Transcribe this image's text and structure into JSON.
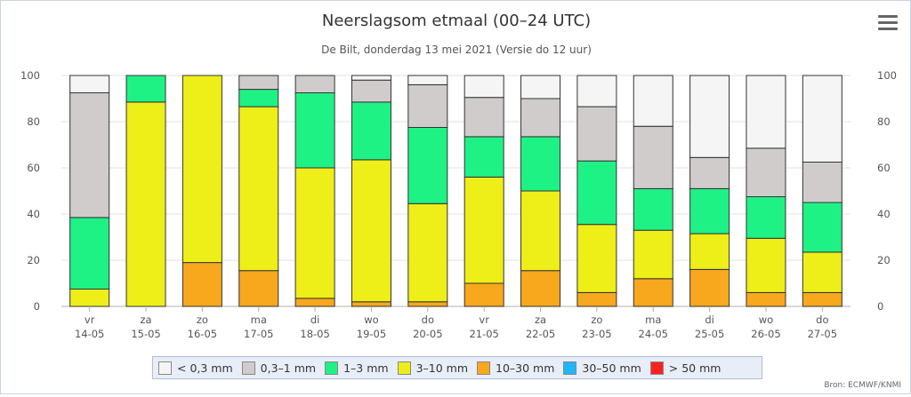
{
  "header": {
    "title": "Neerslagsom etmaal (00–24 UTC)",
    "subtitle": "De Bilt, donderdag 13 mei 2021 (Versie do 12 uur)"
  },
  "credits": "Bron: ECMWF/KNMI",
  "chart_data": {
    "type": "bar",
    "stacked": true,
    "title": "Neerslagsom etmaal (00–24 UTC)",
    "subtitle": "De Bilt, donderdag 13 mei 2021 (Versie do 12 uur)",
    "categories": [
      {
        "day": "vr",
        "date": "14-05"
      },
      {
        "day": "za",
        "date": "15-05"
      },
      {
        "day": "zo",
        "date": "16-05"
      },
      {
        "day": "ma",
        "date": "17-05"
      },
      {
        "day": "di",
        "date": "18-05"
      },
      {
        "day": "wo",
        "date": "19-05"
      },
      {
        "day": "do",
        "date": "20-05"
      },
      {
        "day": "vr",
        "date": "21-05"
      },
      {
        "day": "za",
        "date": "22-05"
      },
      {
        "day": "zo",
        "date": "23-05"
      },
      {
        "day": "ma",
        "date": "24-05"
      },
      {
        "day": "di",
        "date": "25-05"
      },
      {
        "day": "wo",
        "date": "26-05"
      },
      {
        "day": "do",
        "date": "27-05"
      }
    ],
    "ylim": [
      0,
      100
    ],
    "yticks": [
      0,
      20,
      40,
      60,
      80,
      100
    ],
    "grid": true,
    "legend_position": "bottom",
    "series": [
      {
        "name": "> 50 mm",
        "color": "#ff2020",
        "values": [
          0,
          0,
          0,
          0,
          0,
          0,
          0,
          0,
          0,
          0,
          0,
          0,
          0,
          0
        ]
      },
      {
        "name": "30–50 mm",
        "color": "#1fb6ff",
        "values": [
          0,
          0,
          0,
          0,
          0,
          0,
          0,
          0,
          0,
          0,
          0,
          0,
          0,
          0
        ]
      },
      {
        "name": "10–30 mm",
        "color": "#f7a81c",
        "values": [
          0,
          0,
          19,
          15.5,
          3.5,
          2,
          2,
          10,
          15.5,
          6,
          12,
          16,
          6,
          6
        ]
      },
      {
        "name": "3–10 mm",
        "color": "#eeee18",
        "values": [
          7.5,
          88.5,
          81,
          71,
          56.5,
          61.5,
          42.5,
          46,
          34.5,
          29.5,
          21,
          15.5,
          23.5,
          17.5
        ]
      },
      {
        "name": "1–3 mm",
        "color": "#1ff285",
        "values": [
          31,
          11.5,
          0,
          7.5,
          32.5,
          25,
          33,
          17.5,
          23.5,
          27.5,
          18,
          19.5,
          18,
          21.5
        ]
      },
      {
        "name": "0,3–1 mm",
        "color": "#d1cccc",
        "values": [
          54,
          0,
          0,
          6,
          7.5,
          9.5,
          18.5,
          17,
          16.5,
          23.5,
          27,
          13.5,
          21,
          17.5
        ]
      },
      {
        "name": "< 0,3 mm",
        "color": "#f5f5f5",
        "values": [
          7.5,
          0,
          0,
          0,
          0,
          2,
          4,
          9.5,
          10,
          13.5,
          22,
          35.5,
          31.5,
          37.5
        ]
      }
    ],
    "legend_order": [
      "< 0,3 mm",
      "0,3–1 mm",
      "1–3 mm",
      "3–10 mm",
      "10–30 mm",
      "30–50 mm",
      "> 50 mm"
    ]
  }
}
